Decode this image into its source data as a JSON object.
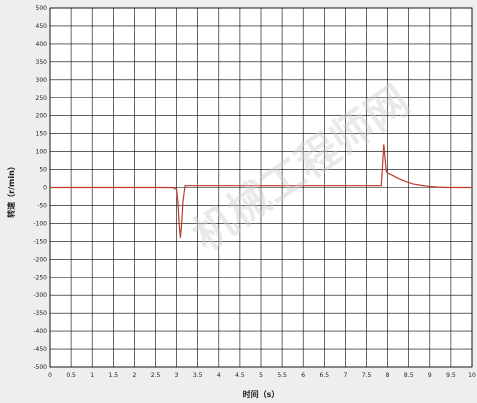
{
  "chart_data": {
    "type": "line",
    "xlabel": "时间（s）",
    "ylabel": "转速（r/min）",
    "xlim": [
      0,
      10
    ],
    "ylim": [
      -500,
      500
    ],
    "grid": true,
    "x_ticks": [
      "0",
      "0.5",
      "1",
      "1.5",
      "2",
      "2.5",
      "3",
      "3.5",
      "4",
      "4.5",
      "5",
      "5.5",
      "6",
      "6.5",
      "7",
      "7.5",
      "8",
      "8.5",
      "9",
      "9.5",
      "10"
    ],
    "y_ticks": [
      "500",
      "450",
      "400",
      "350",
      "300",
      "250",
      "200",
      "150",
      "100",
      "50",
      "0",
      "-50",
      "-100",
      "-150",
      "-200",
      "-250",
      "-300",
      "-350",
      "-400",
      "-450",
      "-500"
    ],
    "series": [
      {
        "color": "#c0392b",
        "x": [
          0,
          0.5,
          1.0,
          1.5,
          2.0,
          2.5,
          2.9,
          3.0,
          3.03,
          3.06,
          3.09,
          3.12,
          3.15,
          3.2,
          3.3,
          3.5,
          4.0,
          5.0,
          6.0,
          7.0,
          7.7,
          7.85,
          7.88,
          7.91,
          7.94,
          7.97,
          8.0,
          8.1,
          8.2,
          8.4,
          8.6,
          8.8,
          9.0,
          9.2,
          9.4,
          9.6,
          9.8,
          10.0
        ],
        "y": [
          0,
          0,
          0,
          0,
          0,
          0,
          0,
          -5,
          -40,
          -100,
          -140,
          -100,
          -40,
          5,
          5,
          5,
          5,
          5,
          5,
          5,
          5,
          5,
          60,
          120,
          80,
          45,
          40,
          35,
          28,
          18,
          10,
          6,
          3,
          1,
          0,
          0,
          0,
          0
        ]
      }
    ],
    "watermark": "机械工程师网"
  }
}
